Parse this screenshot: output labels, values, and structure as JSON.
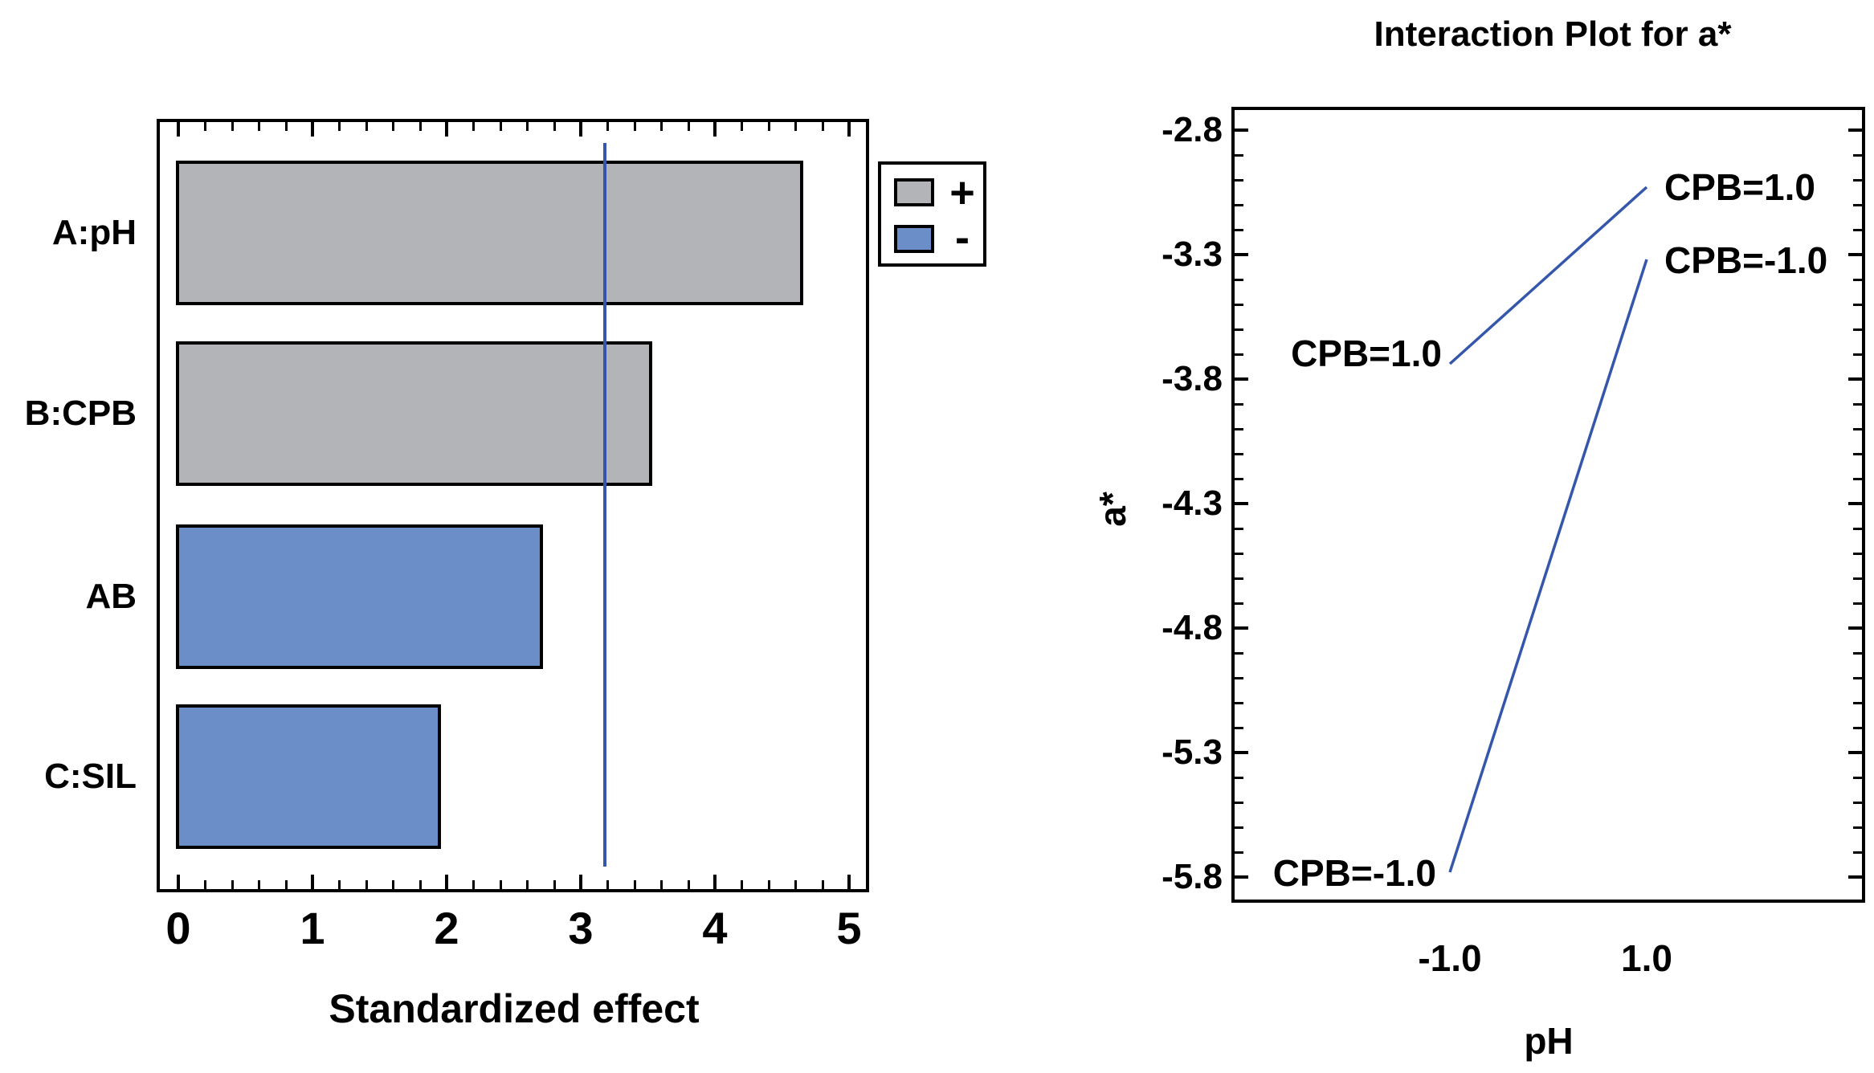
{
  "chart_data": [
    {
      "type": "bar",
      "orientation": "horizontal",
      "title": "",
      "xlabel": "Standardized effect",
      "categories": [
        "A:pH",
        "B:CPB",
        "AB",
        "C:SIL"
      ],
      "values": [
        4.66,
        3.53,
        2.72,
        1.96
      ],
      "signs": [
        "+",
        "+",
        "-",
        "-"
      ],
      "xlim": [
        0,
        5
      ],
      "x_major_ticks": [
        0,
        1,
        2,
        3,
        4,
        5
      ],
      "x_tick_labels": [
        "0",
        "1",
        "2",
        "3",
        "4",
        "5"
      ],
      "x_minor_step": 0.2,
      "reference_line": 3.18,
      "grid": "off",
      "legend": {
        "position": "outside-top-right",
        "items": [
          {
            "label": "+",
            "color_key": "positive"
          },
          {
            "label": "-",
            "color_key": "negative"
          }
        ]
      }
    },
    {
      "type": "line",
      "title": "Interaction Plot for a*",
      "xlabel": "pH",
      "ylabel": "a*",
      "x": [
        -1.0,
        1.0
      ],
      "x_tick_labels": [
        "-1.0",
        "1.0"
      ],
      "ylim": [
        -5.9,
        -2.7
      ],
      "y_major_ticks": [
        -2.8,
        -3.3,
        -3.8,
        -4.3,
        -4.8,
        -5.3,
        -5.8
      ],
      "y_tick_labels": [
        "-2.8",
        "-3.3",
        "-3.8",
        "-4.3",
        "-4.8",
        "-5.3",
        "-5.8"
      ],
      "y_minor_step": 0.1,
      "grid": "off",
      "series": [
        {
          "name": "CPB=1.0",
          "values": [
            -3.74,
            -3.03
          ],
          "label_left": "CPB=1.0",
          "label_right": "CPB=1.0"
        },
        {
          "name": "CPB=-1.0",
          "values": [
            -5.78,
            -3.32
          ],
          "label_left": "CPB=-1.0",
          "label_right": "CPB=-1.0"
        }
      ]
    }
  ],
  "colors": {
    "positive": "#b2b4b7",
    "negative": "#6b8dc8",
    "line": "#3557ab",
    "reference_line": "#3557ab",
    "frame": "#000000",
    "text": "#000000",
    "background": "#ffffff"
  }
}
